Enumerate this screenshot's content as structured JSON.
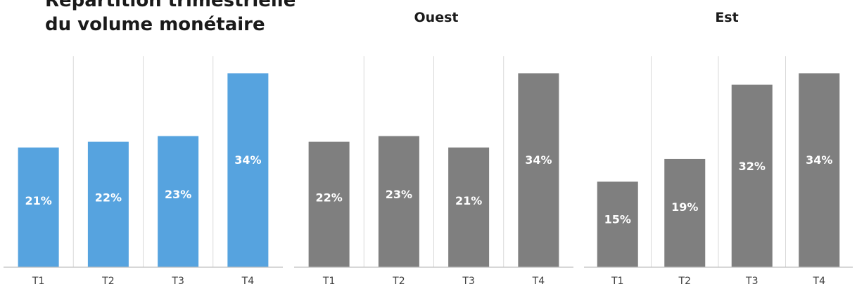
{
  "title_lines": [
    "Répartition trimestrielle",
    "du volume monétaire"
  ],
  "colors": {
    "highlight": "#56A3DF",
    "neutral": "#7F7F7F",
    "grid": "#D9D9D9",
    "label": "#FFFFFF"
  },
  "chart_data": [
    {
      "type": "bar",
      "title": "",
      "categories": [
        "T1",
        "T2",
        "T3",
        "T4"
      ],
      "values": [
        21,
        22,
        23,
        34
      ],
      "labels": [
        "21%",
        "22%",
        "23%",
        "34%"
      ],
      "ylim": [
        0,
        37
      ],
      "color": "#56A3DF",
      "grid": "vertical separators",
      "legend": "none"
    },
    {
      "type": "bar",
      "title": "Ouest",
      "categories": [
        "T1",
        "T2",
        "T3",
        "T4"
      ],
      "values": [
        22,
        23,
        21,
        34
      ],
      "labels": [
        "22%",
        "23%",
        "21%",
        "34%"
      ],
      "ylim": [
        0,
        37
      ],
      "color": "#7F7F7F",
      "grid": "vertical separators",
      "legend": "none"
    },
    {
      "type": "bar",
      "title": "Est",
      "categories": [
        "T1",
        "T2",
        "T3",
        "T4"
      ],
      "values": [
        15,
        19,
        32,
        34
      ],
      "labels": [
        "15%",
        "19%",
        "32%",
        "34%"
      ],
      "ylim": [
        0,
        37
      ],
      "color": "#7F7F7F",
      "grid": "vertical separators",
      "legend": "none"
    }
  ]
}
